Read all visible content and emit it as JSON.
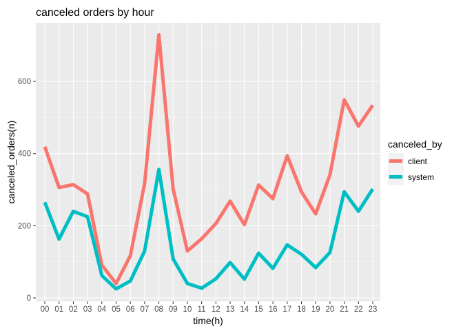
{
  "chart_data": {
    "type": "line",
    "title": "canceled orders by hour",
    "xlabel": "time(h)",
    "ylabel": "canceled_orders(n)",
    "categories": [
      "00",
      "01",
      "02",
      "03",
      "04",
      "05",
      "06",
      "07",
      "08",
      "09",
      "10",
      "11",
      "12",
      "13",
      "14",
      "15",
      "16",
      "17",
      "18",
      "19",
      "20",
      "21",
      "22",
      "23"
    ],
    "y_ticks": [
      0,
      200,
      400,
      600
    ],
    "ylim": [
      0,
      730
    ],
    "grid": true,
    "legend": {
      "title": "canceled_by",
      "position": "right"
    },
    "series": [
      {
        "name": "client",
        "color": "#F8766D",
        "values": [
          419,
          306,
          314,
          288,
          91,
          40,
          117,
          317,
          729,
          302,
          130,
          164,
          206,
          268,
          203,
          313,
          275,
          394,
          294,
          233,
          341,
          549,
          476,
          534
        ]
      },
      {
        "name": "system",
        "color": "#00BFC4",
        "values": [
          265,
          163,
          240,
          225,
          62,
          25,
          47,
          130,
          356,
          108,
          40,
          27,
          53,
          98,
          52,
          124,
          82,
          147,
          121,
          84,
          126,
          294,
          240,
          302
        ]
      }
    ]
  }
}
